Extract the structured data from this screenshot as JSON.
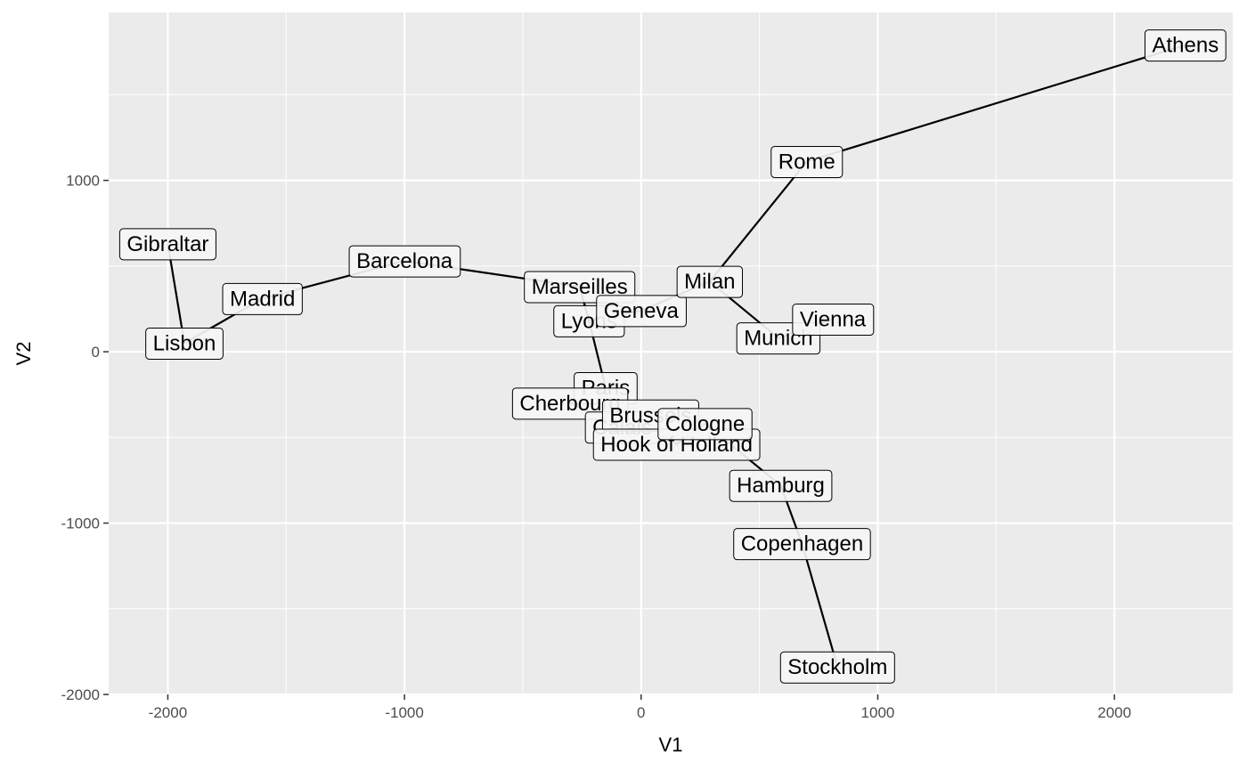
{
  "chart_data": {
    "type": "scatter",
    "title": "",
    "xlabel": "V1",
    "ylabel": "V2",
    "xlim": [
      -2250,
      2500
    ],
    "ylim": [
      -2000,
      1980
    ],
    "x_ticks": [
      -2000,
      -1000,
      0,
      1000,
      2000
    ],
    "x_tick_labels": [
      "-2000",
      "-1000",
      "0",
      "1000",
      "2000"
    ],
    "y_ticks": [
      -2000,
      -1000,
      0,
      1000
    ],
    "y_tick_labels": [
      "-2000",
      "-1000",
      "0",
      "1000"
    ],
    "grid": true,
    "connecting_path": true,
    "points": [
      {
        "label": "Gibraltar",
        "x": -2000,
        "y": 630
      },
      {
        "label": "Lisbon",
        "x": -1930,
        "y": 50
      },
      {
        "label": "Madrid",
        "x": -1600,
        "y": 310
      },
      {
        "label": "Barcelona",
        "x": -1000,
        "y": 530
      },
      {
        "label": "Marseilles",
        "x": -260,
        "y": 380
      },
      {
        "label": "Lyons",
        "x": -220,
        "y": 180
      },
      {
        "label": "Paris",
        "x": -150,
        "y": -210
      },
      {
        "label": "Cherbourg",
        "x": -300,
        "y": -300
      },
      {
        "label": "Calais",
        "x": -80,
        "y": -440
      },
      {
        "label": "Brussels",
        "x": 40,
        "y": -370
      },
      {
        "label": "Hook of Holland",
        "x": 150,
        "y": -540
      },
      {
        "label": "Cologne",
        "x": 270,
        "y": -420
      },
      {
        "label": "Hamburg",
        "x": 590,
        "y": -780
      },
      {
        "label": "Copenhagen",
        "x": 680,
        "y": -1120
      },
      {
        "label": "Stockholm",
        "x": 830,
        "y": -1840
      },
      {
        "label": "Geneva",
        "x": 0,
        "y": 240
      },
      {
        "label": "Milan",
        "x": 290,
        "y": 410
      },
      {
        "label": "Munich",
        "x": 580,
        "y": 80
      },
      {
        "label": "Vienna",
        "x": 810,
        "y": 190
      },
      {
        "label": "Rome",
        "x": 700,
        "y": 1110
      },
      {
        "label": "Athens",
        "x": 2300,
        "y": 1790
      }
    ],
    "path_order": [
      "Gibraltar",
      "Lisbon",
      "Madrid",
      "Barcelona",
      "Marseilles",
      "Lyons",
      "Paris",
      "Cherbourg",
      "Calais",
      "Brussels",
      "Hook of Holland",
      "Cologne",
      "Hamburg",
      "Copenhagen",
      "Stockholm"
    ],
    "path_order_2": [
      "Marseilles",
      "Lyons",
      "Geneva",
      "Milan",
      "Munich",
      "Vienna"
    ],
    "path_order_3": [
      "Milan",
      "Rome",
      "Athens"
    ],
    "colors": {
      "panel_background": "#ebebeb",
      "grid_major": "#ffffff",
      "line": "#000000",
      "label_fill": "#f5f5f5",
      "label_border": "#000000",
      "tick_text": "#4d4d4d"
    }
  }
}
